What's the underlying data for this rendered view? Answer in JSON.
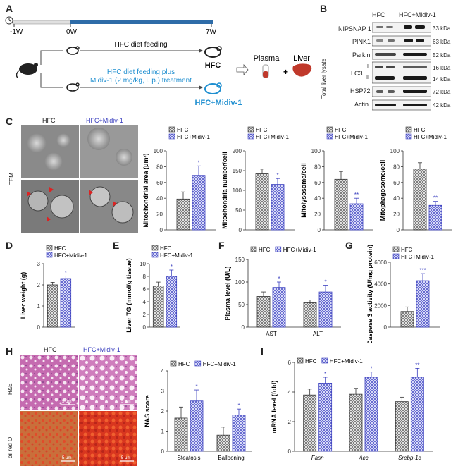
{
  "panel_labels": {
    "a": "A",
    "b": "B",
    "c": "C",
    "d": "D",
    "e": "E",
    "f": "F",
    "g": "G",
    "h": "H",
    "i": "I"
  },
  "colors": {
    "hfc": "#666666",
    "midiv": "#3a3fbf",
    "timeline_blue": "#2e6ca8",
    "red": "#c0392b",
    "hfc_blue_text": "#1f8fd0",
    "midiv_text": "#3a3fbf"
  },
  "panelA": {
    "timeline_ticks": [
      "-1W",
      "0W",
      "7W"
    ],
    "top_label": "HFC diet feeding",
    "bottom_label_1": "HFC diet feeding plus",
    "bottom_label_2": "Midiv-1 (2 mg/kg, i. p.) treatment",
    "group_hfc": "HFC",
    "group_midiv": "HFC+Midiv-1",
    "plasma": "Plasma",
    "liver": "Liver",
    "plus": "+"
  },
  "panelB": {
    "col_hfc": "HFC",
    "col_midiv": "HFC+Midiv-1",
    "side_label": "Total liver lysate",
    "rows": [
      {
        "name": "NIPSNAP 1",
        "kda": "33 kDa"
      },
      {
        "name": "PINK1",
        "kda": "63 kDa"
      },
      {
        "name": "Parkin",
        "kda": "52 kDa"
      },
      {
        "name": "LC3",
        "kda": "16 kDa",
        "kda2": "14 kDa",
        "sub1": "I",
        "sub2": "II"
      },
      {
        "name": "HSP72",
        "kda": "72 kDa"
      },
      {
        "name": "Actin",
        "kda": "42 kDa"
      }
    ]
  },
  "panelC": {
    "img_hfc": "HFC",
    "img_midiv": "HFC+Midiv-1",
    "side": "TEM"
  },
  "panelH": {
    "img_hfc": "HFC",
    "img_midiv": "HFC+Midiv-1",
    "row1": "H&E",
    "row2": "oil red O",
    "scale": "5 μm"
  },
  "chart_data": [
    {
      "id": "C1",
      "type": "bar",
      "ylabel": "Mitochondrial area (μm²)",
      "ylim": [
        0,
        100
      ],
      "yticks": [
        0,
        20,
        40,
        60,
        80,
        100
      ],
      "legend": [
        "HFC",
        "HFC+Midiv-1"
      ],
      "series": [
        {
          "name": "HFC",
          "values": [
            39
          ]
        },
        {
          "name": "HFC+Midiv-1",
          "values": [
            69
          ]
        }
      ],
      "errors": [
        9,
        12
      ],
      "sig": [
        "",
        "*"
      ]
    },
    {
      "id": "C2",
      "type": "bar",
      "ylabel": "Mitochondria number/cell",
      "ylim": [
        0,
        200
      ],
      "yticks": [
        0,
        50,
        100,
        150,
        200
      ],
      "legend": [
        "HFC",
        "HFC+Midiv-1"
      ],
      "series": [
        {
          "name": "HFC",
          "values": [
            142
          ]
        },
        {
          "name": "HFC+Midiv-1",
          "values": [
            115
          ]
        }
      ],
      "errors": [
        12,
        15
      ],
      "sig": [
        "",
        "*"
      ]
    },
    {
      "id": "C3",
      "type": "bar",
      "ylabel": "Mitolysosome/cell",
      "ylim": [
        0,
        100
      ],
      "yticks": [
        0,
        20,
        40,
        60,
        80,
        100
      ],
      "legend": [
        "HFC",
        "HFC+Midiv-1"
      ],
      "series": [
        {
          "name": "HFC",
          "values": [
            64
          ]
        },
        {
          "name": "HFC+Midiv-1",
          "values": [
            33
          ]
        }
      ],
      "errors": [
        10,
        7
      ],
      "sig": [
        "",
        "**"
      ]
    },
    {
      "id": "C4",
      "type": "bar",
      "ylabel": "Mitophagosome/cell",
      "ylim": [
        0,
        100
      ],
      "yticks": [
        0,
        20,
        40,
        60,
        80,
        100
      ],
      "legend": [
        "HFC",
        "HFC+Midiv-1"
      ],
      "series": [
        {
          "name": "HFC",
          "values": [
            77
          ]
        },
        {
          "name": "HFC+Midiv-1",
          "values": [
            31
          ]
        }
      ],
      "errors": [
        8,
        5
      ],
      "sig": [
        "",
        "**"
      ]
    },
    {
      "id": "D",
      "type": "bar",
      "ylabel": "Liver weight (g)",
      "ylim": [
        0,
        3
      ],
      "yticks": [
        0,
        1,
        2,
        3
      ],
      "legend": [
        "HFC",
        "HFC+Midiv-1"
      ],
      "series": [
        {
          "name": "HFC",
          "values": [
            2.0
          ]
        },
        {
          "name": "HFC+Midiv-1",
          "values": [
            2.3
          ]
        }
      ],
      "errors": [
        0.12,
        0.12
      ],
      "sig": [
        "",
        "*"
      ]
    },
    {
      "id": "E",
      "type": "bar",
      "ylabel": "Liver TG (mmol/g tissue)",
      "ylim": [
        0,
        10
      ],
      "yticks": [
        0,
        2,
        4,
        6,
        8,
        10
      ],
      "legend": [
        "HFC",
        "HFC+Midiv-1"
      ],
      "series": [
        {
          "name": "HFC",
          "values": [
            6.5
          ]
        },
        {
          "name": "HFC+Midiv-1",
          "values": [
            8.0
          ]
        }
      ],
      "errors": [
        0.6,
        1.0
      ],
      "sig": [
        "",
        "*"
      ]
    },
    {
      "id": "F",
      "type": "bar",
      "ylabel": "Plasma level (U/L)",
      "ylim": [
        0,
        150
      ],
      "yticks": [
        0,
        50,
        100,
        150
      ],
      "categories": [
        "AST",
        "ALT"
      ],
      "legend": [
        "HFC",
        "HFC+Midiv-1"
      ],
      "series": [
        {
          "name": "HFC",
          "values": [
            68,
            54
          ]
        },
        {
          "name": "HFC+Midiv-1",
          "values": [
            88,
            78
          ]
        }
      ],
      "errors": [
        [
          10,
          6
        ],
        [
          12,
          15
        ]
      ],
      "sig": [
        [
          "",
          ""
        ],
        [
          "*",
          "*"
        ]
      ]
    },
    {
      "id": "G",
      "type": "bar",
      "ylabel": "Caspase 3 activity (U/mg protein)",
      "ylim": [
        0,
        6000
      ],
      "yticks": [
        0,
        2000,
        4000,
        6000
      ],
      "legend": [
        "HFC",
        "HFC+Midiv-1"
      ],
      "series": [
        {
          "name": "HFC",
          "values": [
            1450
          ]
        },
        {
          "name": "HFC+Midiv-1",
          "values": [
            4300
          ]
        }
      ],
      "errors": [
        420,
        650
      ],
      "sig": [
        "",
        "***"
      ]
    },
    {
      "id": "H",
      "type": "bar",
      "ylabel": "NAS score",
      "ylim": [
        0,
        4
      ],
      "yticks": [
        0,
        1,
        2,
        3,
        4
      ],
      "categories": [
        "Steatosis",
        "Ballooning"
      ],
      "legend": [
        "HFC",
        "HFC+Midiv-1"
      ],
      "series": [
        {
          "name": "HFC",
          "values": [
            1.65,
            0.8
          ]
        },
        {
          "name": "HFC+Midiv-1",
          "values": [
            2.5,
            1.8
          ]
        }
      ],
      "errors": [
        [
          0.55,
          0.4
        ],
        [
          0.55,
          0.3
        ]
      ],
      "sig": [
        [
          "",
          ""
        ],
        [
          "*",
          "*"
        ]
      ]
    },
    {
      "id": "I",
      "type": "bar",
      "ylabel": "mRNA level (fold)",
      "ylim": [
        0,
        6
      ],
      "yticks": [
        0,
        2,
        4,
        6
      ],
      "categories": [
        "Fasn",
        "Acc",
        "Srebp-1c"
      ],
      "legend": [
        "HFC",
        "HFC+Midiv-1"
      ],
      "series": [
        {
          "name": "HFC",
          "values": [
            3.8,
            3.85,
            3.35
          ]
        },
        {
          "name": "HFC+Midiv-1",
          "values": [
            4.6,
            5.0,
            5.0
          ]
        }
      ],
      "errors": [
        [
          0.4,
          0.4,
          0.3
        ],
        [
          0.4,
          0.35,
          0.6
        ]
      ],
      "sig": [
        [
          "",
          "",
          ""
        ],
        [
          "*",
          "*",
          "**"
        ]
      ]
    }
  ]
}
